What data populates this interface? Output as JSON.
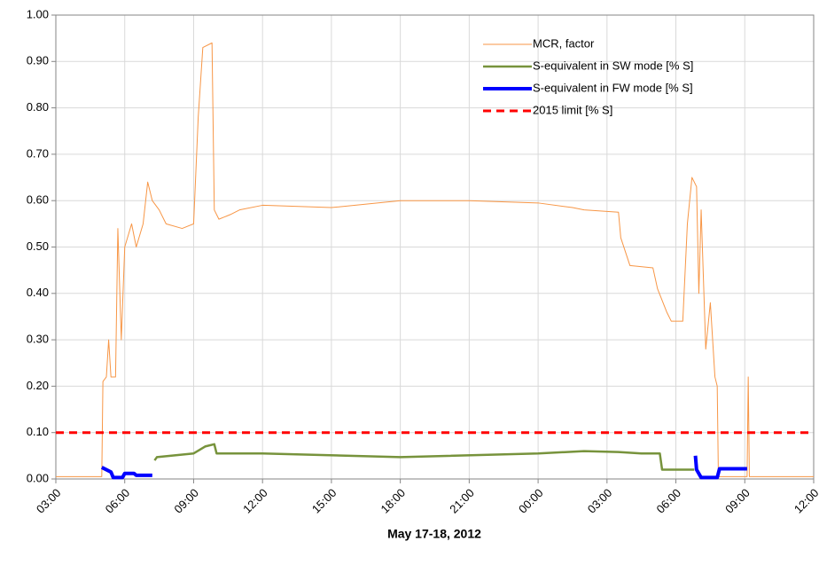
{
  "chart_data": {
    "type": "line",
    "xlabel": "May 17-18, 2012",
    "xlim": [
      3,
      36
    ],
    "xticks": [
      {
        "value": 3,
        "label": "03:00"
      },
      {
        "value": 6,
        "label": "06:00"
      },
      {
        "value": 9,
        "label": "09:00"
      },
      {
        "value": 12,
        "label": "12:00"
      },
      {
        "value": 15,
        "label": "15:00"
      },
      {
        "value": 18,
        "label": "18:00"
      },
      {
        "value": 21,
        "label": "21:00"
      },
      {
        "value": 24,
        "label": "00:00"
      },
      {
        "value": 27,
        "label": "03:00"
      },
      {
        "value": 30,
        "label": "06:00"
      },
      {
        "value": 33,
        "label": "09:00"
      },
      {
        "value": 36,
        "label": "12:00"
      }
    ],
    "ylim": [
      0,
      1
    ],
    "yticks": [
      {
        "value": 0,
        "label": "0.00"
      },
      {
        "value": 0.1,
        "label": "0.10"
      },
      {
        "value": 0.2,
        "label": "0.20"
      },
      {
        "value": 0.3,
        "label": "0.30"
      },
      {
        "value": 0.4,
        "label": "0.40"
      },
      {
        "value": 0.5,
        "label": "0.50"
      },
      {
        "value": 0.6,
        "label": "0.60"
      },
      {
        "value": 0.7,
        "label": "0.70"
      },
      {
        "value": 0.8,
        "label": "0.80"
      },
      {
        "value": 0.9,
        "label": "0.90"
      },
      {
        "value": 1,
        "label": "1.00"
      }
    ],
    "grid": true,
    "legend": "top-right",
    "series": [
      {
        "name": "MCR, factor",
        "color": "#f79646",
        "width": 1,
        "linestyle": "solid",
        "x": [
          3,
          5.0,
          5.05,
          5.2,
          5.3,
          5.4,
          5.6,
          5.7,
          5.85,
          6.0,
          6.3,
          6.5,
          6.8,
          7.0,
          7.2,
          7.5,
          7.8,
          8.5,
          9.0,
          9.2,
          9.4,
          9.8,
          9.9,
          10.1,
          10.6,
          11,
          12,
          15,
          18,
          21,
          24,
          25.5,
          26,
          27.5,
          27.6,
          28,
          29,
          29.2,
          29.6,
          29.8,
          30.3,
          30.5,
          30.7,
          30.9,
          31.0,
          31.1,
          31.3,
          31.5,
          31.7,
          31.8,
          31.85,
          33.1,
          33.15,
          33.2,
          36
        ],
        "values": [
          0.005,
          0.005,
          0.21,
          0.22,
          0.3,
          0.22,
          0.22,
          0.54,
          0.3,
          0.5,
          0.55,
          0.5,
          0.55,
          0.64,
          0.6,
          0.58,
          0.55,
          0.54,
          0.55,
          0.78,
          0.93,
          0.94,
          0.58,
          0.56,
          0.57,
          0.58,
          0.59,
          0.585,
          0.6,
          0.6,
          0.595,
          0.585,
          0.58,
          0.575,
          0.52,
          0.46,
          0.455,
          0.41,
          0.36,
          0.34,
          0.34,
          0.55,
          0.65,
          0.63,
          0.4,
          0.58,
          0.28,
          0.38,
          0.22,
          0.2,
          0.005,
          0.005,
          0.22,
          0.005,
          0.005
        ]
      },
      {
        "name": "S-equivalent in SW mode [% S]",
        "color": "#77933c",
        "width": 2.5,
        "linestyle": "solid",
        "x": [
          7.3,
          7.4,
          9.0,
          9.5,
          9.9,
          10.0,
          12,
          18,
          24,
          26,
          27.5,
          28.5,
          29.3,
          29.4,
          30.8
        ],
        "values": [
          0.04,
          0.047,
          0.055,
          0.07,
          0.075,
          0.055,
          0.055,
          0.047,
          0.055,
          0.06,
          0.058,
          0.055,
          0.055,
          0.02,
          0.02
        ]
      },
      {
        "name": "S-equivalent in FW mode [% S]",
        "color": "#0000ff",
        "width": 4,
        "linestyle": "solid",
        "x": [
          5.0,
          5.4,
          5.5,
          5.9,
          6.0,
          6.4,
          6.5,
          7.2,
          19,
          30.85,
          30.9,
          31.1,
          31.8,
          31.9,
          33.1
        ],
        "values": [
          0.025,
          0.015,
          0.003,
          0.003,
          0.012,
          0.012,
          0.008,
          0.008,
          null,
          0.05,
          0.02,
          0.003,
          0.003,
          0.022,
          0.022
        ]
      },
      {
        "name": "2015 limit [% S]",
        "color": "#ff0000",
        "width": 3,
        "linestyle": "dashed",
        "x": [
          3,
          36
        ],
        "values": [
          0.1,
          0.1
        ]
      }
    ]
  }
}
